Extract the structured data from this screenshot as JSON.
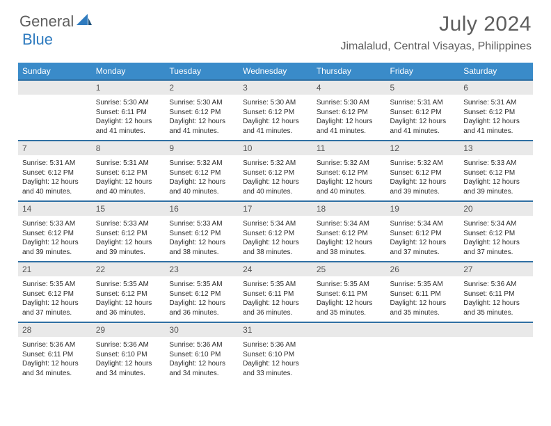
{
  "logo": {
    "part1": "General",
    "part2": "Blue"
  },
  "title": "July 2024",
  "location": "Jimalalud, Central Visayas, Philippines",
  "colors": {
    "header_bg": "#3a8bc9",
    "header_text": "#ffffff",
    "daynum_bg": "#e9e9e9",
    "border_top": "#2f6fa3",
    "brand_blue": "#2f7bbf",
    "title_gray": "#5e5e5e"
  },
  "weekdays": [
    "Sunday",
    "Monday",
    "Tuesday",
    "Wednesday",
    "Thursday",
    "Friday",
    "Saturday"
  ],
  "weeks": [
    {
      "nums": [
        "",
        "1",
        "2",
        "3",
        "4",
        "5",
        "6"
      ],
      "cells": [
        null,
        {
          "sr": "5:30 AM",
          "ss": "6:11 PM",
          "dl": "12 hours and 41 minutes."
        },
        {
          "sr": "5:30 AM",
          "ss": "6:12 PM",
          "dl": "12 hours and 41 minutes."
        },
        {
          "sr": "5:30 AM",
          "ss": "6:12 PM",
          "dl": "12 hours and 41 minutes."
        },
        {
          "sr": "5:30 AM",
          "ss": "6:12 PM",
          "dl": "12 hours and 41 minutes."
        },
        {
          "sr": "5:31 AM",
          "ss": "6:12 PM",
          "dl": "12 hours and 41 minutes."
        },
        {
          "sr": "5:31 AM",
          "ss": "6:12 PM",
          "dl": "12 hours and 41 minutes."
        }
      ]
    },
    {
      "nums": [
        "7",
        "8",
        "9",
        "10",
        "11",
        "12",
        "13"
      ],
      "cells": [
        {
          "sr": "5:31 AM",
          "ss": "6:12 PM",
          "dl": "12 hours and 40 minutes."
        },
        {
          "sr": "5:31 AM",
          "ss": "6:12 PM",
          "dl": "12 hours and 40 minutes."
        },
        {
          "sr": "5:32 AM",
          "ss": "6:12 PM",
          "dl": "12 hours and 40 minutes."
        },
        {
          "sr": "5:32 AM",
          "ss": "6:12 PM",
          "dl": "12 hours and 40 minutes."
        },
        {
          "sr": "5:32 AM",
          "ss": "6:12 PM",
          "dl": "12 hours and 40 minutes."
        },
        {
          "sr": "5:32 AM",
          "ss": "6:12 PM",
          "dl": "12 hours and 39 minutes."
        },
        {
          "sr": "5:33 AM",
          "ss": "6:12 PM",
          "dl": "12 hours and 39 minutes."
        }
      ]
    },
    {
      "nums": [
        "14",
        "15",
        "16",
        "17",
        "18",
        "19",
        "20"
      ],
      "cells": [
        {
          "sr": "5:33 AM",
          "ss": "6:12 PM",
          "dl": "12 hours and 39 minutes."
        },
        {
          "sr": "5:33 AM",
          "ss": "6:12 PM",
          "dl": "12 hours and 39 minutes."
        },
        {
          "sr": "5:33 AM",
          "ss": "6:12 PM",
          "dl": "12 hours and 38 minutes."
        },
        {
          "sr": "5:34 AM",
          "ss": "6:12 PM",
          "dl": "12 hours and 38 minutes."
        },
        {
          "sr": "5:34 AM",
          "ss": "6:12 PM",
          "dl": "12 hours and 38 minutes."
        },
        {
          "sr": "5:34 AM",
          "ss": "6:12 PM",
          "dl": "12 hours and 37 minutes."
        },
        {
          "sr": "5:34 AM",
          "ss": "6:12 PM",
          "dl": "12 hours and 37 minutes."
        }
      ]
    },
    {
      "nums": [
        "21",
        "22",
        "23",
        "24",
        "25",
        "26",
        "27"
      ],
      "cells": [
        {
          "sr": "5:35 AM",
          "ss": "6:12 PM",
          "dl": "12 hours and 37 minutes."
        },
        {
          "sr": "5:35 AM",
          "ss": "6:12 PM",
          "dl": "12 hours and 36 minutes."
        },
        {
          "sr": "5:35 AM",
          "ss": "6:12 PM",
          "dl": "12 hours and 36 minutes."
        },
        {
          "sr": "5:35 AM",
          "ss": "6:11 PM",
          "dl": "12 hours and 36 minutes."
        },
        {
          "sr": "5:35 AM",
          "ss": "6:11 PM",
          "dl": "12 hours and 35 minutes."
        },
        {
          "sr": "5:35 AM",
          "ss": "6:11 PM",
          "dl": "12 hours and 35 minutes."
        },
        {
          "sr": "5:36 AM",
          "ss": "6:11 PM",
          "dl": "12 hours and 35 minutes."
        }
      ]
    },
    {
      "nums": [
        "28",
        "29",
        "30",
        "31",
        "",
        "",
        ""
      ],
      "cells": [
        {
          "sr": "5:36 AM",
          "ss": "6:11 PM",
          "dl": "12 hours and 34 minutes."
        },
        {
          "sr": "5:36 AM",
          "ss": "6:10 PM",
          "dl": "12 hours and 34 minutes."
        },
        {
          "sr": "5:36 AM",
          "ss": "6:10 PM",
          "dl": "12 hours and 34 minutes."
        },
        {
          "sr": "5:36 AM",
          "ss": "6:10 PM",
          "dl": "12 hours and 33 minutes."
        },
        null,
        null,
        null
      ]
    }
  ],
  "labels": {
    "sunrise": "Sunrise:",
    "sunset": "Sunset:",
    "daylight": "Daylight:"
  }
}
